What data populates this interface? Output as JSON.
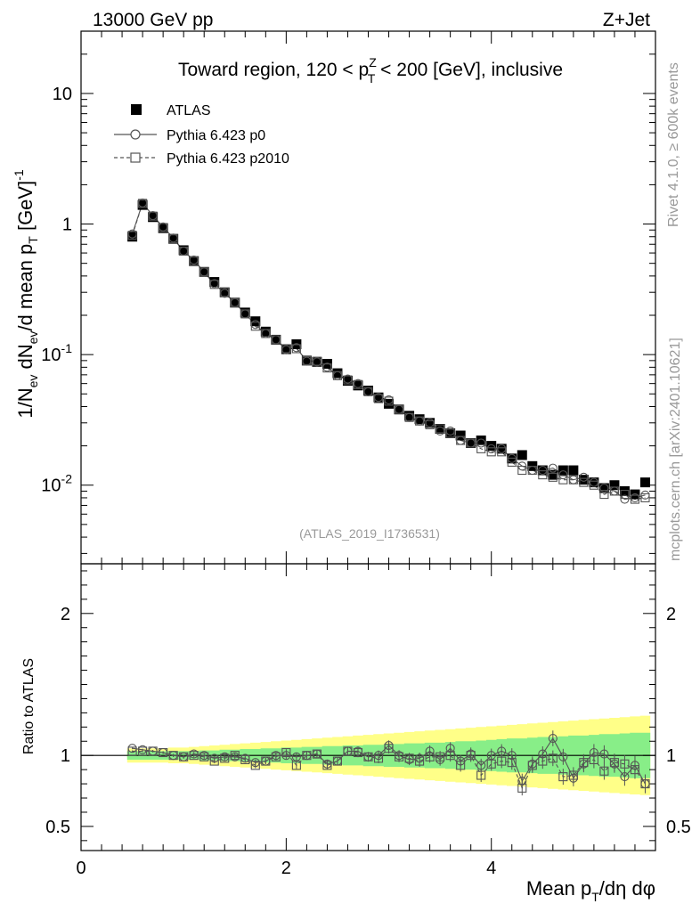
{
  "header": {
    "energy_label": "13000 GeV pp",
    "process_label": "Z+Jet"
  },
  "side_labels": {
    "rivet": "Rivet 4.1.0, ≥ 600k events",
    "mcplots": "mcplots.cern.ch [arXiv:2401.10621]"
  },
  "chart_data": [
    {
      "type": "scatter",
      "panel": "main",
      "title": "Toward region, 120 < p_T^Z < 200 [GeV], inclusive",
      "title_parts": {
        "pre": "Toward region, 120 < p",
        "sup": "Z",
        "sub": "T",
        "post": " < 200 [GeV], inclusive"
      },
      "ylabel": "1/N_ev dN_ev/d mean p_T [GeV]^-1",
      "ylabel_parts": {
        "a": "1/N",
        "b": "ev",
        "c": " dN",
        "d": "ev",
        "e": "/d mean p",
        "f": "T",
        "g": " [GeV]",
        "h": "-1"
      },
      "yscale": "log",
      "ylim": [
        0.0025,
        30
      ],
      "xlim": [
        0,
        5.6
      ],
      "yticks": [
        {
          "value": 10,
          "label": "10"
        },
        {
          "value": 1,
          "label": "1"
        },
        {
          "value": 0.1,
          "label": "10",
          "exp": "-1"
        },
        {
          "value": 0.01,
          "label": "10",
          "exp": "-2"
        }
      ],
      "watermark": "(ATLAS_2019_I1736531)",
      "legend_position": "top-left",
      "legend": [
        {
          "label": "ATLAS",
          "marker": "filled-square"
        },
        {
          "label": "Pythia 6.423 p0",
          "marker": "open-circle-solid-line"
        },
        {
          "label": "Pythia 6.423 p2010",
          "marker": "open-square-dashed-line"
        }
      ],
      "x": [
        0.5,
        0.6,
        0.7,
        0.8,
        0.9,
        1.0,
        1.1,
        1.2,
        1.3,
        1.4,
        1.5,
        1.6,
        1.7,
        1.8,
        1.9,
        2.0,
        2.1,
        2.2,
        2.3,
        2.4,
        2.5,
        2.6,
        2.7,
        2.8,
        2.9,
        3.0,
        3.1,
        3.2,
        3.3,
        3.4,
        3.5,
        3.6,
        3.7,
        3.8,
        3.9,
        4.0,
        4.1,
        4.2,
        4.3,
        4.4,
        4.5,
        4.6,
        4.7,
        4.8,
        4.9,
        5.0,
        5.1,
        5.2,
        5.3,
        5.4,
        5.5
      ],
      "series": [
        {
          "name": "ATLAS",
          "values": [
            0.8,
            1.4,
            1.13,
            0.93,
            0.77,
            0.63,
            0.52,
            0.43,
            0.36,
            0.3,
            0.25,
            0.21,
            0.18,
            0.15,
            0.13,
            0.11,
            0.12,
            0.09,
            0.088,
            0.085,
            0.072,
            0.063,
            0.058,
            0.053,
            0.047,
            0.042,
            0.038,
            0.034,
            0.032,
            0.03,
            0.027,
            0.025,
            0.024,
            0.021,
            0.022,
            0.02,
            0.019,
            0.016,
            0.017,
            0.014,
            0.013,
            0.012,
            0.013,
            0.013,
            0.011,
            0.0105,
            0.0095,
            0.01,
            0.009,
            0.0085,
            0.0105
          ]
        },
        {
          "name": "Pythia 6.423 p0",
          "values": [
            0.84,
            1.45,
            1.16,
            0.95,
            0.78,
            0.62,
            0.53,
            0.43,
            0.35,
            0.295,
            0.25,
            0.205,
            0.17,
            0.145,
            0.13,
            0.109,
            0.113,
            0.089,
            0.088,
            0.08,
            0.069,
            0.065,
            0.06,
            0.052,
            0.047,
            0.045,
            0.038,
            0.033,
            0.031,
            0.03,
            0.026,
            0.026,
            0.022,
            0.021,
            0.021,
            0.019,
            0.019,
            0.016,
            0.014,
            0.013,
            0.013,
            0.0135,
            0.012,
            0.011,
            0.0115,
            0.0105,
            0.0095,
            0.009,
            0.0078,
            0.008,
            0.0084
          ]
        },
        {
          "name": "Pythia 6.423 p2010",
          "values": [
            0.82,
            1.44,
            1.15,
            0.94,
            0.77,
            0.62,
            0.52,
            0.43,
            0.345,
            0.3,
            0.25,
            0.205,
            0.165,
            0.145,
            0.13,
            0.111,
            0.111,
            0.09,
            0.089,
            0.079,
            0.069,
            0.064,
            0.059,
            0.052,
            0.046,
            0.044,
            0.038,
            0.033,
            0.031,
            0.029,
            0.027,
            0.025,
            0.022,
            0.021,
            0.019,
            0.018,
            0.018,
            0.015,
            0.013,
            0.013,
            0.012,
            0.0115,
            0.011,
            0.011,
            0.0105,
            0.01,
            0.0085,
            0.009,
            0.0085,
            0.0078,
            0.008
          ]
        }
      ]
    },
    {
      "type": "scatter",
      "panel": "ratio",
      "ylabel": "Ratio to ATLAS",
      "xlabel": "Mean p_T/dη dφ",
      "xlabel_parts": {
        "a": "Mean p",
        "b": "T",
        "c": "/dη dφ"
      },
      "xlim": [
        0,
        5.6
      ],
      "ylim": [
        0.33,
        2.35
      ],
      "xticks": [
        {
          "value": 0,
          "label": "0"
        },
        {
          "value": 2,
          "label": "2"
        },
        {
          "value": 4,
          "label": "4"
        }
      ],
      "yticks": [
        {
          "value": 0.5,
          "label": "0.5"
        },
        {
          "value": 1,
          "label": "1"
        },
        {
          "value": 2,
          "label": "2"
        }
      ],
      "reference_line": 1,
      "band_x": [
        0.45,
        0.55,
        0.65,
        0.75,
        0.85,
        0.95,
        1.05,
        1.15,
        1.25,
        1.35,
        1.45,
        1.55,
        1.65,
        1.75,
        1.85,
        1.95,
        2.05,
        2.15,
        2.25,
        2.35,
        2.45,
        2.55,
        2.65,
        2.75,
        2.85,
        2.95,
        3.05,
        3.15,
        3.25,
        3.35,
        3.45,
        3.55,
        3.65,
        3.75,
        3.85,
        3.95,
        4.05,
        4.15,
        4.25,
        4.35,
        4.45,
        4.55,
        4.65,
        4.75,
        4.85,
        4.95,
        5.05,
        5.15,
        5.25,
        5.35,
        5.45,
        5.55
      ],
      "band_stat": [
        0.03,
        0.03,
        0.03,
        0.03,
        0.03,
        0.03,
        0.03,
        0.035,
        0.035,
        0.04,
        0.04,
        0.045,
        0.045,
        0.05,
        0.05,
        0.055,
        0.055,
        0.06,
        0.06,
        0.065,
        0.065,
        0.07,
        0.07,
        0.075,
        0.075,
        0.08,
        0.08,
        0.085,
        0.085,
        0.09,
        0.09,
        0.095,
        0.1,
        0.1,
        0.105,
        0.11,
        0.115,
        0.12,
        0.12,
        0.125,
        0.13,
        0.13,
        0.135,
        0.14,
        0.14,
        0.145,
        0.15,
        0.15,
        0.155,
        0.16,
        0.16,
        0.16
      ],
      "band_total": [
        0.05,
        0.05,
        0.05,
        0.05,
        0.055,
        0.055,
        0.06,
        0.065,
        0.07,
        0.075,
        0.08,
        0.085,
        0.09,
        0.095,
        0.1,
        0.105,
        0.11,
        0.115,
        0.12,
        0.125,
        0.13,
        0.135,
        0.14,
        0.145,
        0.15,
        0.155,
        0.16,
        0.165,
        0.17,
        0.175,
        0.18,
        0.185,
        0.19,
        0.195,
        0.2,
        0.205,
        0.21,
        0.215,
        0.22,
        0.225,
        0.23,
        0.235,
        0.24,
        0.245,
        0.25,
        0.255,
        0.26,
        0.265,
        0.27,
        0.275,
        0.28,
        0.28
      ],
      "series": [
        {
          "name": "Pythia 6.423 p0",
          "values": [
            1.05,
            1.04,
            1.03,
            1.02,
            1.0,
            0.99,
            1.01,
            1.0,
            0.98,
            0.99,
            0.99,
            0.98,
            0.95,
            0.96,
            1.0,
            1.0,
            0.99,
            1.0,
            1.01,
            0.94,
            0.96,
            1.03,
            1.03,
            0.99,
            1.0,
            1.07,
            1.0,
            0.97,
            0.98,
            1.03,
            0.97,
            1.05,
            0.96,
            1.01,
            0.93,
            1.0,
            1.03,
            1.0,
            0.82,
            0.94,
            1.01,
            1.12,
            0.99,
            0.84,
            0.94,
            1.02,
            1.01,
            0.94,
            0.85,
            0.93,
            0.8
          ]
        },
        {
          "name": "Pythia 6.423 p2010",
          "values": [
            1.03,
            1.03,
            1.03,
            1.02,
            1.0,
            0.99,
            1.0,
            0.99,
            0.96,
            0.98,
            1.0,
            0.97,
            0.93,
            0.96,
            0.99,
            1.02,
            0.93,
            1.0,
            1.01,
            0.93,
            0.96,
            1.03,
            1.02,
            0.99,
            0.98,
            1.05,
            0.99,
            0.98,
            0.96,
            0.99,
            0.99,
            1.0,
            0.93,
            1.0,
            0.86,
            0.94,
            0.96,
            0.95,
            0.77,
            0.93,
            0.96,
            0.98,
            0.85,
            0.86,
            0.95,
            0.97,
            0.89,
            0.95,
            0.94,
            0.9,
            0.8
          ]
        }
      ]
    }
  ]
}
